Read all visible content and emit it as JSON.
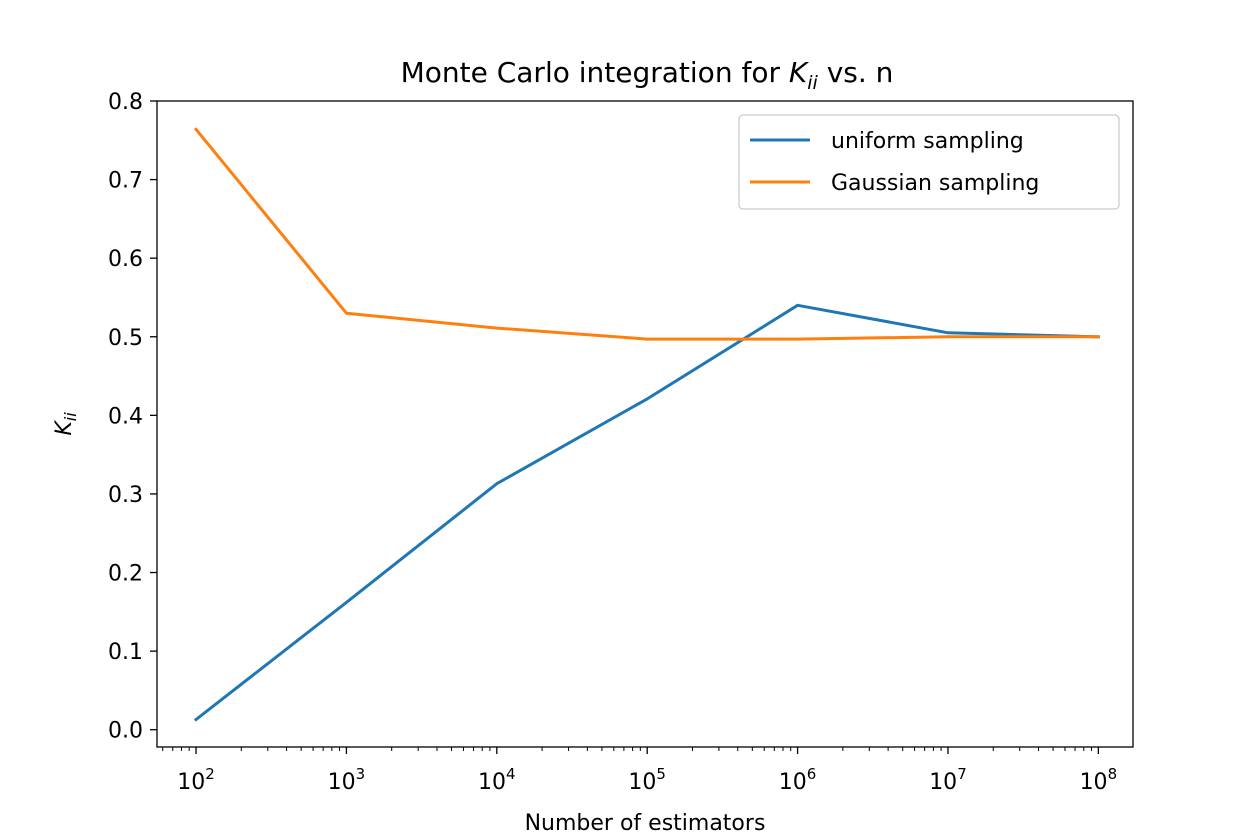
{
  "chart_data": {
    "type": "line",
    "title_prefix": "Monte Carlo integration for ",
    "title_math_base": "K",
    "title_math_sub": "ii",
    "title_suffix": " vs. n",
    "xlabel": "Number of estimators",
    "ylabel_base": "K",
    "ylabel_sub": "ii",
    "x_scale": "log",
    "x": [
      100,
      1000,
      10000,
      100000,
      1000000,
      10000000,
      100000000
    ],
    "xlim": [
      55,
      170000000
    ],
    "ylim": [
      -0.022,
      0.8
    ],
    "x_ticks": [
      {
        "value": 100,
        "base": "10",
        "exp": "2"
      },
      {
        "value": 1000,
        "base": "10",
        "exp": "3"
      },
      {
        "value": 10000,
        "base": "10",
        "exp": "4"
      },
      {
        "value": 100000,
        "base": "10",
        "exp": "5"
      },
      {
        "value": 1000000,
        "base": "10",
        "exp": "6"
      },
      {
        "value": 10000000,
        "base": "10",
        "exp": "7"
      },
      {
        "value": 100000000,
        "base": "10",
        "exp": "8"
      }
    ],
    "y_ticks": [
      {
        "value": 0.0,
        "label": "0.0"
      },
      {
        "value": 0.1,
        "label": "0.1"
      },
      {
        "value": 0.2,
        "label": "0.2"
      },
      {
        "value": 0.3,
        "label": "0.3"
      },
      {
        "value": 0.4,
        "label": "0.4"
      },
      {
        "value": 0.5,
        "label": "0.5"
      },
      {
        "value": 0.6,
        "label": "0.6"
      },
      {
        "value": 0.7,
        "label": "0.7"
      },
      {
        "value": 0.8,
        "label": "0.8"
      }
    ],
    "series": [
      {
        "name": "uniform sampling",
        "color": "#1f77b4",
        "values": [
          0.013,
          0.162,
          0.313,
          0.421,
          0.54,
          0.505,
          0.5
        ]
      },
      {
        "name": "Gaussian sampling",
        "color": "#ff7f0e",
        "values": [
          0.764,
          0.53,
          0.511,
          0.497,
          0.497,
          0.5,
          0.5
        ]
      }
    ],
    "legend_position": "top-right",
    "grid": false
  }
}
